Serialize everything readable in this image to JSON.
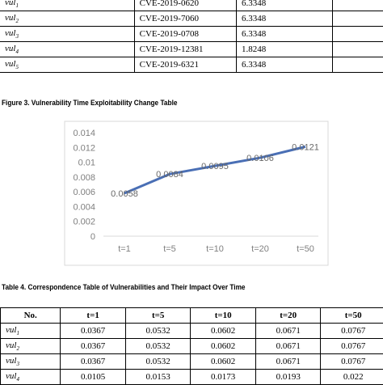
{
  "table3": {
    "rows": [
      {
        "label": "vul",
        "sub": "1",
        "cve": "CVE-2019-0620",
        "value": "6.3348"
      },
      {
        "label": "vul",
        "sub": "2",
        "cve": "CVE-2019-7060",
        "value": "6.3348"
      },
      {
        "label": "vul",
        "sub": "3",
        "cve": "CVE-2019-0708",
        "value": "6.3348"
      },
      {
        "label": "vul",
        "sub": "4",
        "cve": "CVE-2019-12381",
        "value": "1.8248"
      },
      {
        "label": "vul",
        "sub": "5",
        "cve": "CVE-2019-6321",
        "value": "6.3348"
      }
    ]
  },
  "figure3": {
    "caption": "Figure 3. Vulnerability Time Exploitability Change Table"
  },
  "chart_data": {
    "type": "line",
    "categories": [
      "t=1",
      "t=5",
      "t=10",
      "t=20",
      "t=50"
    ],
    "series": [
      {
        "values": [
          0.0058,
          0.0084,
          0.0095,
          0.0106,
          0.0121
        ],
        "labels": [
          "0.0058",
          "0.0084",
          "0.0095",
          "0.0106",
          "0.0121"
        ]
      }
    ],
    "yticks": [
      "0",
      "0.002",
      "0.004",
      "0.006",
      "0.008",
      "0.01",
      "0.012",
      "0.014"
    ],
    "ylim": [
      0,
      0.014
    ],
    "grid": false,
    "line_color": "#4a6fb5"
  },
  "table4": {
    "caption": "Table 4. Correspondence Table of Vulnerabilities and Their Impact Over Time",
    "headers": [
      "No.",
      "t=1",
      "t=5",
      "t=10",
      "t=20",
      "t=50"
    ],
    "rows": [
      {
        "label": "vul",
        "sub": "1",
        "values": [
          "0.0367",
          "0.0532",
          "0.0602",
          "0.0671",
          "0.0767"
        ]
      },
      {
        "label": "vul",
        "sub": "2",
        "values": [
          "0.0367",
          "0.0532",
          "0.0602",
          "0.0671",
          "0.0767"
        ]
      },
      {
        "label": "vul",
        "sub": "3",
        "values": [
          "0.0367",
          "0.0532",
          "0.0602",
          "0.0671",
          "0.0767"
        ]
      },
      {
        "label": "vul",
        "sub": "4",
        "values": [
          "0.0105",
          "0.0153",
          "0.0173",
          "0.0193",
          "0.022"
        ]
      }
    ]
  }
}
